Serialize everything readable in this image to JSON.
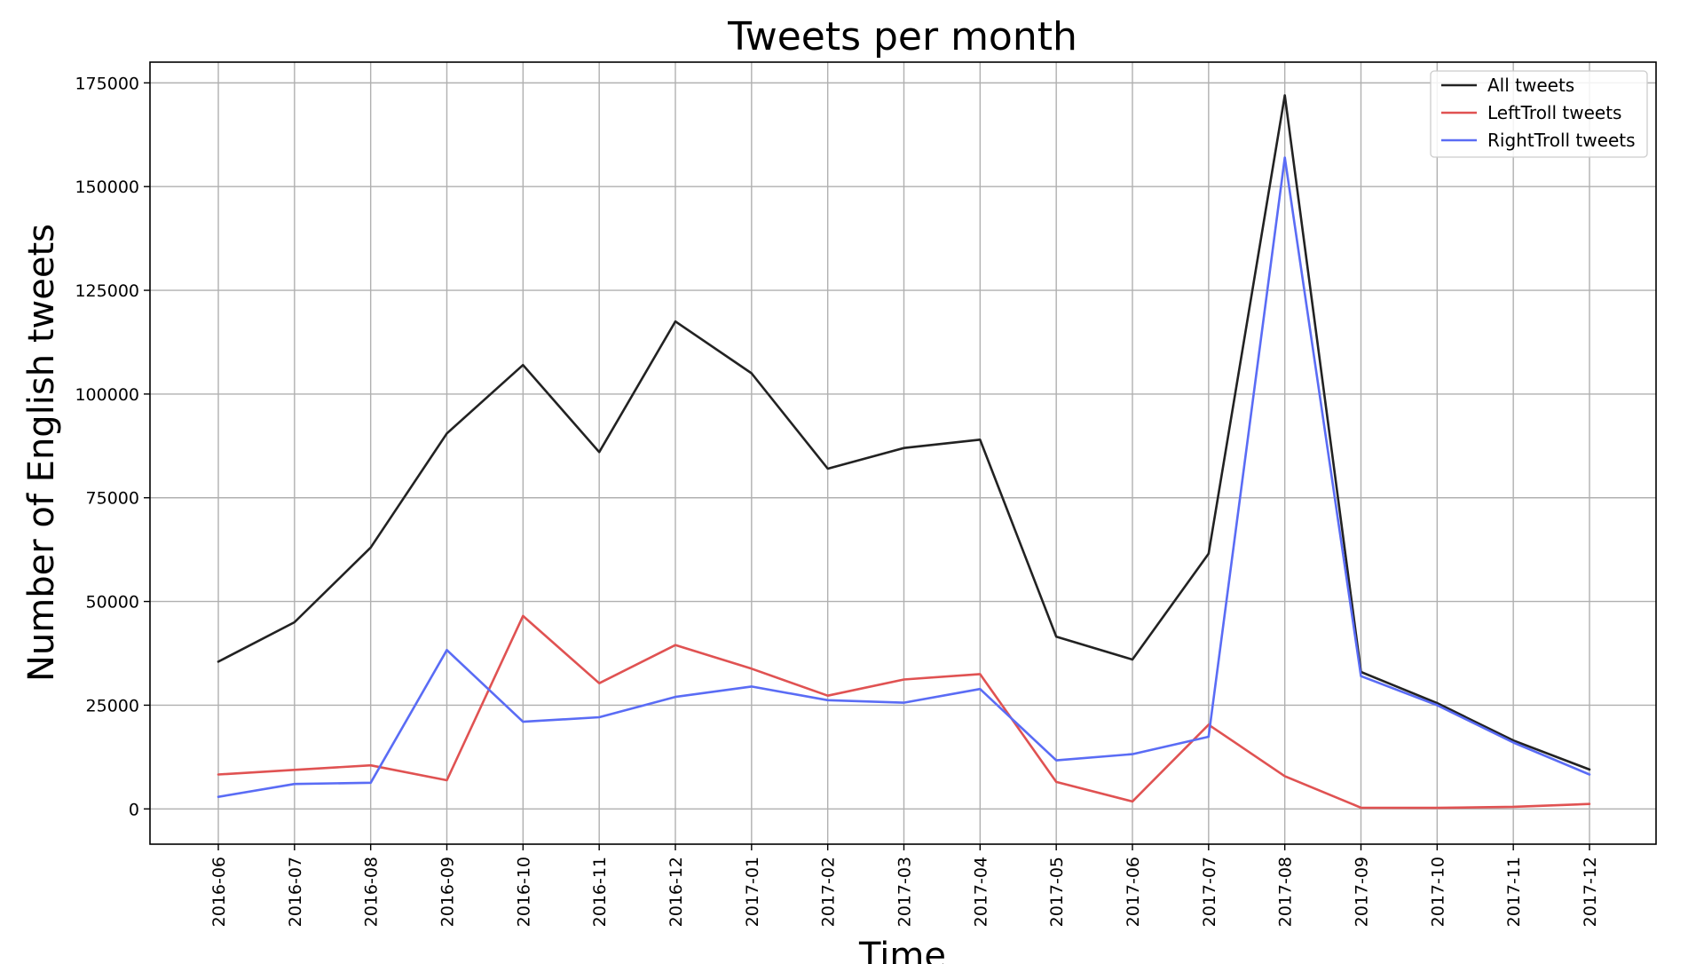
{
  "chart_data": {
    "type": "line",
    "title": "Tweets per month",
    "xlabel": "Time",
    "ylabel": "Number of English tweets",
    "categories": [
      "2016-06",
      "2016-07",
      "2016-08",
      "2016-09",
      "2016-10",
      "2016-11",
      "2016-12",
      "2017-01",
      "2017-02",
      "2017-03",
      "2017-04",
      "2017-05",
      "2017-06",
      "2017-07",
      "2017-08",
      "2017-09",
      "2017-10",
      "2017-11",
      "2017-12"
    ],
    "ylim": [
      -8500,
      180000
    ],
    "yticks": [
      0,
      25000,
      50000,
      75000,
      100000,
      125000,
      150000,
      175000
    ],
    "ytick_labels": [
      "0",
      "25000",
      "50000",
      "75000",
      "100000",
      "125000",
      "150000",
      "175000"
    ],
    "grid": true,
    "legend_position": "top-right",
    "series": [
      {
        "name": "All tweets",
        "color": "#222222",
        "values": [
          35500,
          45000,
          63000,
          90500,
          107000,
          86000,
          117500,
          105000,
          82000,
          87000,
          89000,
          41500,
          36000,
          61500,
          172000,
          33000,
          25500,
          16500,
          9500
        ]
      },
      {
        "name": "LeftTroll tweets",
        "color": "#e05252",
        "values": [
          8300,
          9400,
          10500,
          6900,
          46500,
          30300,
          39500,
          33800,
          27300,
          31200,
          32500,
          6500,
          1800,
          20300,
          7900,
          300,
          250,
          500,
          1200
        ]
      },
      {
        "name": "RightTroll tweets",
        "color": "#5a6cf5",
        "values": [
          2900,
          6000,
          6300,
          38300,
          21000,
          22100,
          27000,
          29500,
          26200,
          25600,
          28900,
          11700,
          13200,
          17400,
          157000,
          32000,
          25000,
          16000,
          8300
        ]
      }
    ]
  }
}
